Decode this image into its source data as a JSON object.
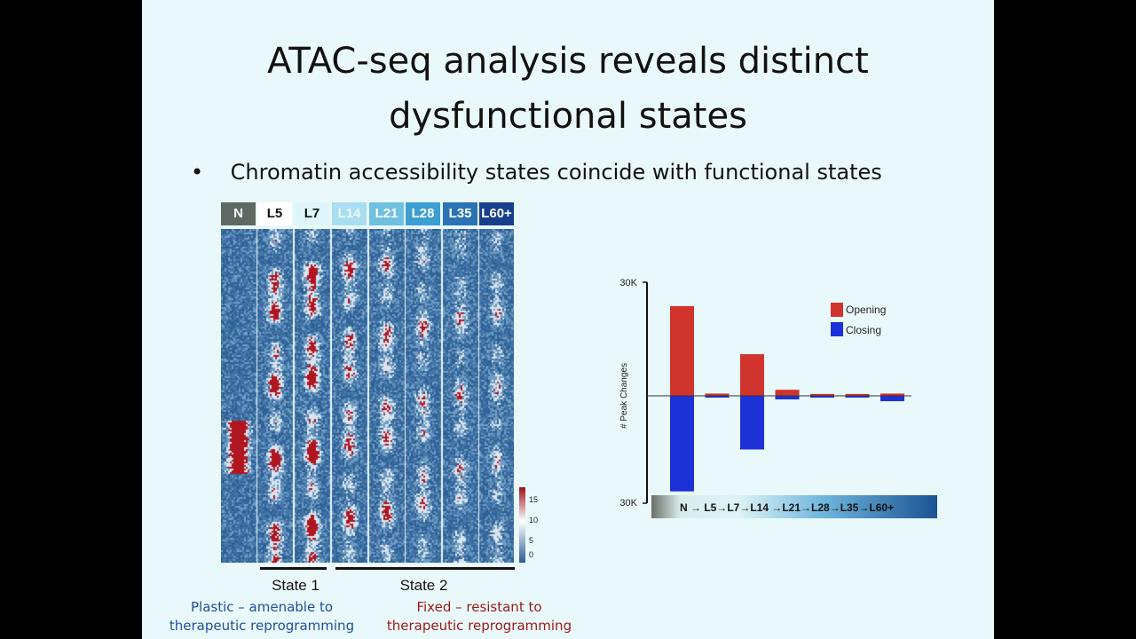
{
  "slide": {
    "title_line1": "ATAC-seq analysis reveals distinct",
    "title_line2": "dysfunctional states",
    "bullet": "Chromatin accessibility states coincide with functional states",
    "heatmap": {
      "columns": [
        {
          "label": "N",
          "bg": "#5d6962",
          "fg": "#ffffff"
        },
        {
          "label": "L5",
          "bg": "#ffffff",
          "fg": "#111111"
        },
        {
          "label": "L7",
          "bg": "#def6f9",
          "fg": "#111111"
        },
        {
          "label": "L14",
          "bg": "#a9def0",
          "fg": "#eaf8fc"
        },
        {
          "label": "L21",
          "bg": "#70c0e2",
          "fg": "#ffffff"
        },
        {
          "label": "L28",
          "bg": "#3c9fd2",
          "fg": "#ffffff"
        },
        {
          "label": "L35",
          "bg": "#2a74b6",
          "fg": "#ffffff"
        },
        {
          "label": "L60+",
          "bg": "#173f8c",
          "fg": "#ffffff"
        }
      ],
      "colorbar_ticks": [
        "15",
        "10",
        "5",
        "0"
      ],
      "colors": {
        "low": "#2c5f93",
        "mid": "#ffffff",
        "high": "#a0101a"
      }
    },
    "states": [
      {
        "label": "State 1"
      },
      {
        "label": "State 2"
      }
    ],
    "captions": {
      "state1_line1": "Plastic – amenable to",
      "state1_line2": "therapeutic reprogramming",
      "state1_color": "#1f4e9a",
      "state2_line1": "Fixed – resistant to",
      "state2_line2": "therapeutic reprogramming",
      "state2_color": "#9a1a14"
    }
  },
  "chart_data": {
    "type": "bar",
    "ylabel": "# Peak Changes",
    "ytick_labels": [
      "30K",
      "30K"
    ],
    "ylim": [
      -30000,
      30000
    ],
    "categories": [
      "N→L5",
      "L5→L7",
      "L7→L14",
      "L14→L21",
      "L21→L28",
      "L28→L35",
      "L35→L60+"
    ],
    "xaxis_label": "N → L5→L7→L14 →L21→L28→L35→L60+",
    "series": [
      {
        "name": "Opening",
        "color": "#d0342c",
        "values": [
          23700,
          600,
          11000,
          1600,
          500,
          500,
          600
        ]
      },
      {
        "name": "Closing",
        "color": "#1c32d8",
        "values": [
          -26700,
          -500,
          -15000,
          -1000,
          -500,
          -500,
          -1500
        ]
      }
    ],
    "legend": "top-right"
  }
}
